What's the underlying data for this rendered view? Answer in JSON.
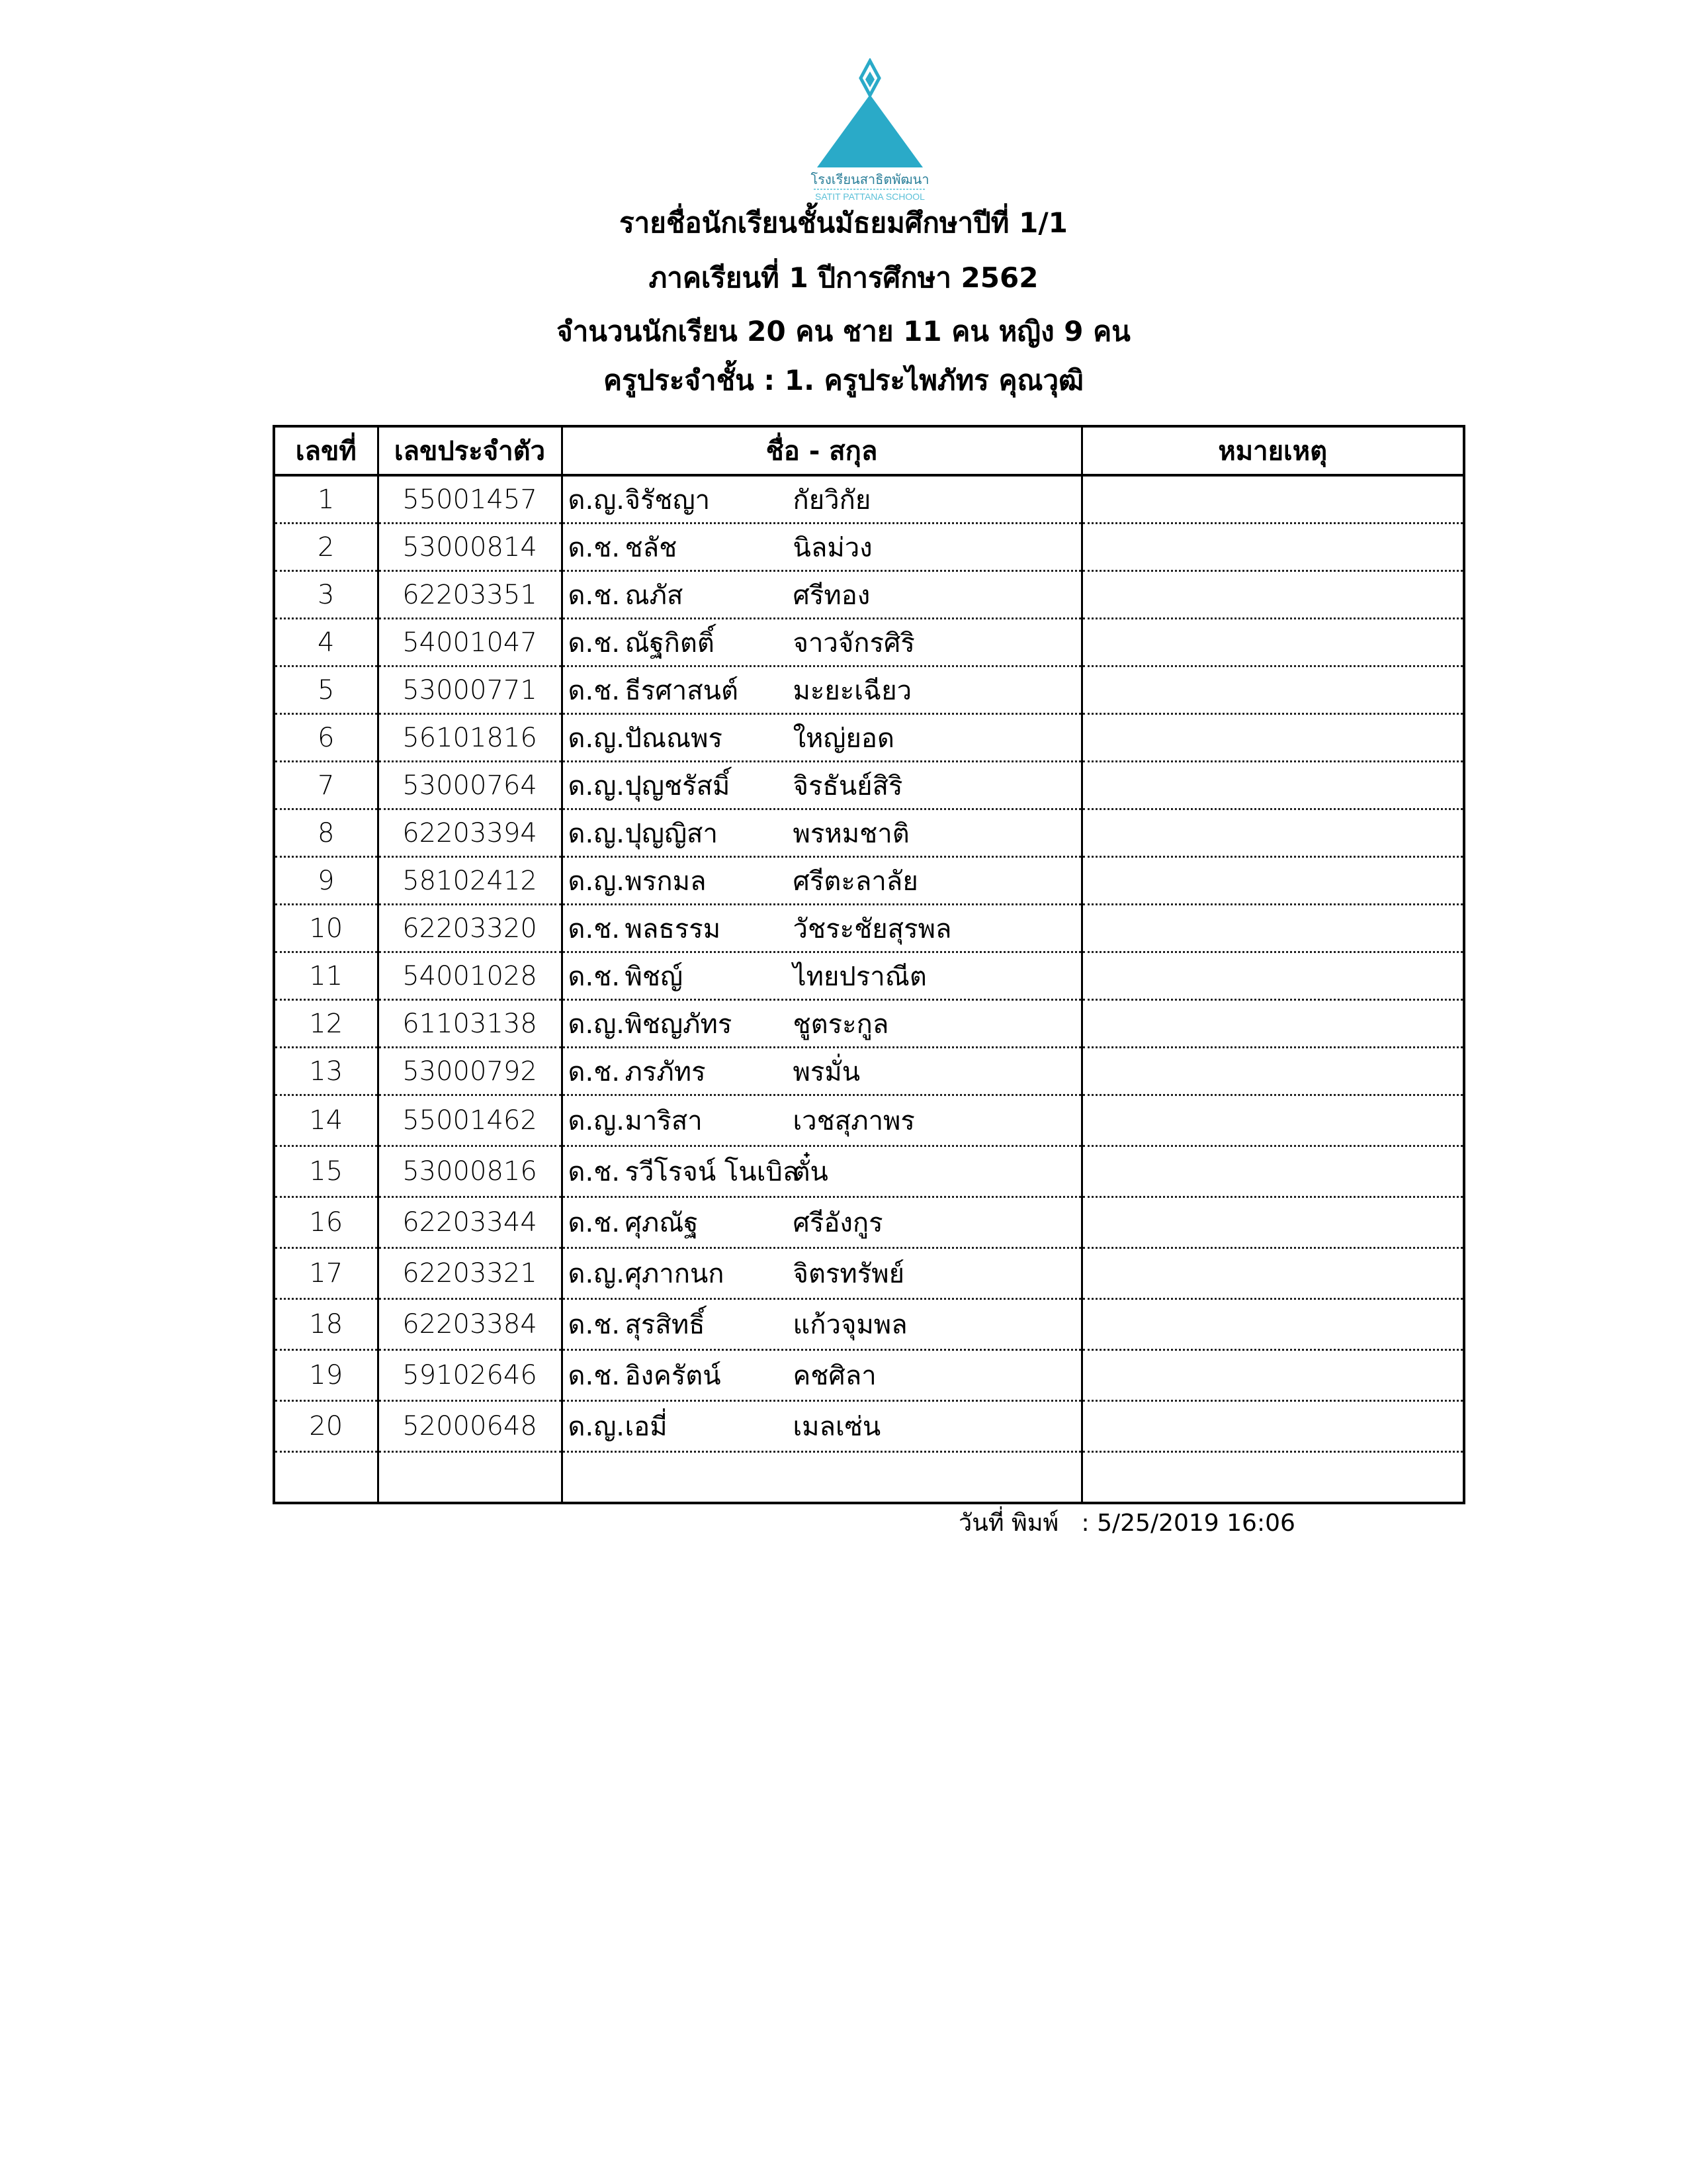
{
  "logo": {
    "thai_name": "โรงเรียนสาธิตพัฒนา",
    "english_name": "SATIT PATTANA SCHOOL",
    "color": "#2aaac8"
  },
  "header": {
    "title": "รายชื่อนักเรียนชั้นมัธยมศึกษาปีที่ 1/1",
    "term": "ภาคเรียนที่ 1 ปีการศึกษา 2562",
    "counts": "จำนวนนักเรียน 20 คน  ชาย 11 คน  หญิง 9 คน",
    "teacher": "ครูประจำชั้น : 1. ครูประไพภัทร คุณวุฒิ"
  },
  "table": {
    "columns": [
      "เลขที่",
      "เลขประจำตัว",
      "ชื่อ - สกุล",
      "หมายเหตุ"
    ],
    "rows": [
      {
        "no": "1",
        "id": "55001457",
        "prefix": "ด.ญ.",
        "first": "จิรัชญา",
        "last": "กัยวิกัย",
        "note": ""
      },
      {
        "no": "2",
        "id": "53000814",
        "prefix": "ด.ช.",
        "first": "ชลัช",
        "last": "นิลม่วง",
        "note": ""
      },
      {
        "no": "3",
        "id": "62203351",
        "prefix": "ด.ช.",
        "first": "ณภัส",
        "last": "ศรีทอง",
        "note": ""
      },
      {
        "no": "4",
        "id": "54001047",
        "prefix": "ด.ช.",
        "first": "ณัฐกิตติ์",
        "last": "จาวจักรศิริ",
        "note": ""
      },
      {
        "no": "5",
        "id": "53000771",
        "prefix": "ด.ช.",
        "first": "ธีรศาสนต์",
        "last": "มะยะเฉียว",
        "note": ""
      },
      {
        "no": "6",
        "id": "56101816",
        "prefix": "ด.ญ.",
        "first": "ปัณณพร",
        "last": "ใหญ่ยอด",
        "note": ""
      },
      {
        "no": "7",
        "id": "53000764",
        "prefix": "ด.ญ.",
        "first": "ปุญชรัสมิ์",
        "last": "จิรธันย์สิริ",
        "note": ""
      },
      {
        "no": "8",
        "id": "62203394",
        "prefix": "ด.ญ.",
        "first": "ปุญญิสา",
        "last": "พรหมชาติ",
        "note": ""
      },
      {
        "no": "9",
        "id": "58102412",
        "prefix": "ด.ญ.",
        "first": "พรกมล",
        "last": "ศรีตะลาลัย",
        "note": ""
      },
      {
        "no": "10",
        "id": "62203320",
        "prefix": "ด.ช.",
        "first": "พลธรรม",
        "last": "วัชระชัยสุรพล",
        "note": ""
      },
      {
        "no": "11",
        "id": "54001028",
        "prefix": "ด.ช.",
        "first": "พิชญ์",
        "last": "ไทยปราณีต",
        "note": ""
      },
      {
        "no": "12",
        "id": "61103138",
        "prefix": "ด.ญ.",
        "first": "พิชญภัทร",
        "last": "ชูตระกูล",
        "note": ""
      },
      {
        "no": "13",
        "id": "53000792",
        "prefix": "ด.ช.",
        "first": "ภรภัทร",
        "last": "พรมั่น",
        "note": ""
      },
      {
        "no": "14",
        "id": "55001462",
        "prefix": "ด.ญ.",
        "first": "มาริสา",
        "last": "เวชสุภาพร",
        "note": ""
      },
      {
        "no": "15",
        "id": "53000816",
        "prefix": "ด.ช.",
        "first": "รวีโรจน์ โนเบิล",
        "last": "ตั๋น",
        "note": ""
      },
      {
        "no": "16",
        "id": "62203344",
        "prefix": "ด.ช.",
        "first": "ศุภณัฐ",
        "last": "ศรีอังกูร",
        "note": ""
      },
      {
        "no": "17",
        "id": "62203321",
        "prefix": "ด.ญ.",
        "first": "ศุภากนก",
        "last": "จิตรทรัพย์",
        "note": ""
      },
      {
        "no": "18",
        "id": "62203384",
        "prefix": "ด.ช.",
        "first": "สุรสิทธิ์",
        "last": "แก้วจุมพล",
        "note": ""
      },
      {
        "no": "19",
        "id": "59102646",
        "prefix": "ด.ช.",
        "first": "อิงครัตน์",
        "last": "คชศิลา",
        "note": ""
      },
      {
        "no": "20",
        "id": "52000648",
        "prefix": "ด.ญ.",
        "first": "เอมี่",
        "last": "เมลเซ่น",
        "note": ""
      }
    ]
  },
  "footer": {
    "printed_label": "วันที่ พิมพ์",
    "printed_value": ": 5/25/2019 16:06"
  }
}
